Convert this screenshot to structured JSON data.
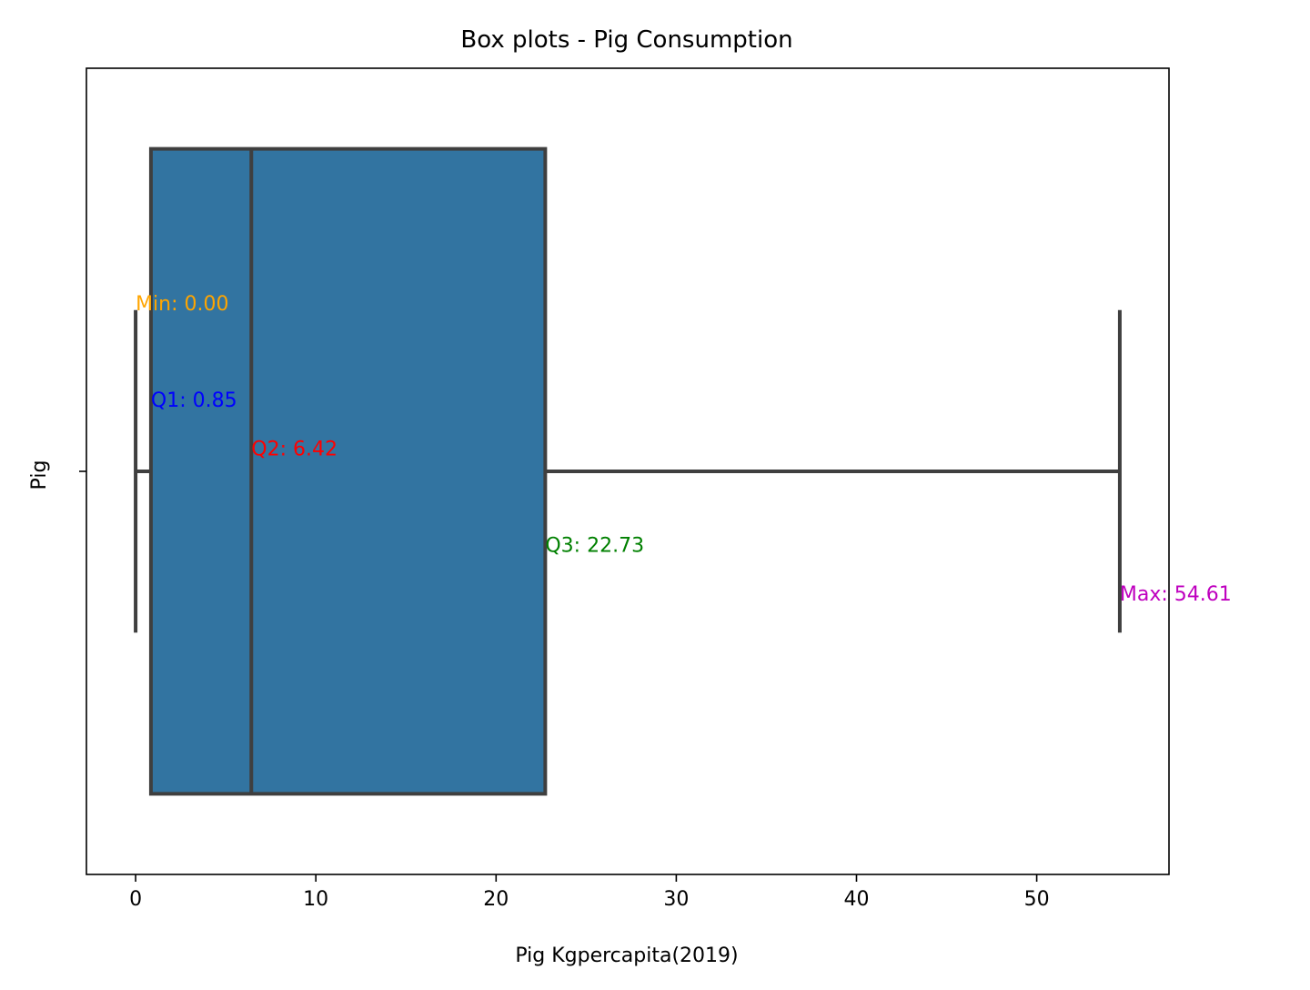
{
  "chart_data": {
    "type": "box",
    "title": "Box plots - Pig Consumption",
    "xlabel": "Pig Kgpercapita(2019)",
    "ylabel": "Pig",
    "category": "Pig",
    "xlim": [
      -2.73,
      57.34
    ],
    "xticks": [
      0,
      10,
      20,
      30,
      40,
      50
    ],
    "grid": false,
    "box": {
      "min": 0.0,
      "q1": 0.85,
      "median": 6.42,
      "q3": 22.73,
      "max": 54.61,
      "color": "#3274a1",
      "edge_color": "#3f3f3f"
    },
    "annotations": [
      {
        "text": "Min: 0.00",
        "x": 0.0,
        "y": -0.2,
        "color": "#ffa500"
      },
      {
        "text": "Q1: 0.85",
        "x": 0.85,
        "y": -0.08,
        "color": "#0000ff"
      },
      {
        "text": "Q2: 6.42",
        "x": 6.42,
        "y": -0.02,
        "color": "#ff0000"
      },
      {
        "text": "Q3: 22.73",
        "x": 22.73,
        "y": 0.1,
        "color": "#008000"
      },
      {
        "text": "Max: 54.61",
        "x": 54.61,
        "y": 0.16,
        "color": "#bf00bf"
      }
    ]
  }
}
